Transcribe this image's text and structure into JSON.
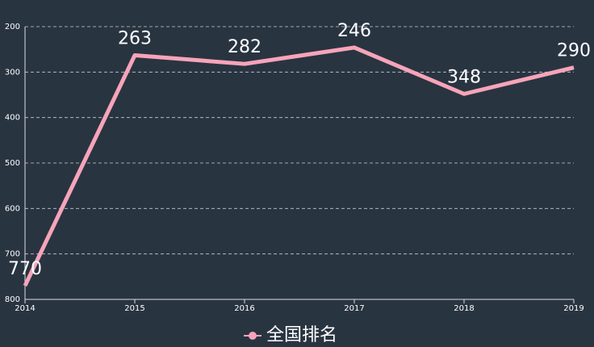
{
  "chart_data": {
    "type": "line",
    "categories": [
      "2014",
      "2015",
      "2016",
      "2017",
      "2018",
      "2019"
    ],
    "series": [
      {
        "name": "全国排名",
        "color": "#f7a4b9",
        "values": [
          770,
          263,
          282,
          246,
          348,
          290
        ]
      }
    ],
    "ylim": [
      200,
      800
    ],
    "yticks": [
      200,
      300,
      400,
      500,
      600,
      700,
      800
    ],
    "y_inverse": true,
    "grid": true,
    "legend": "bottom"
  }
}
